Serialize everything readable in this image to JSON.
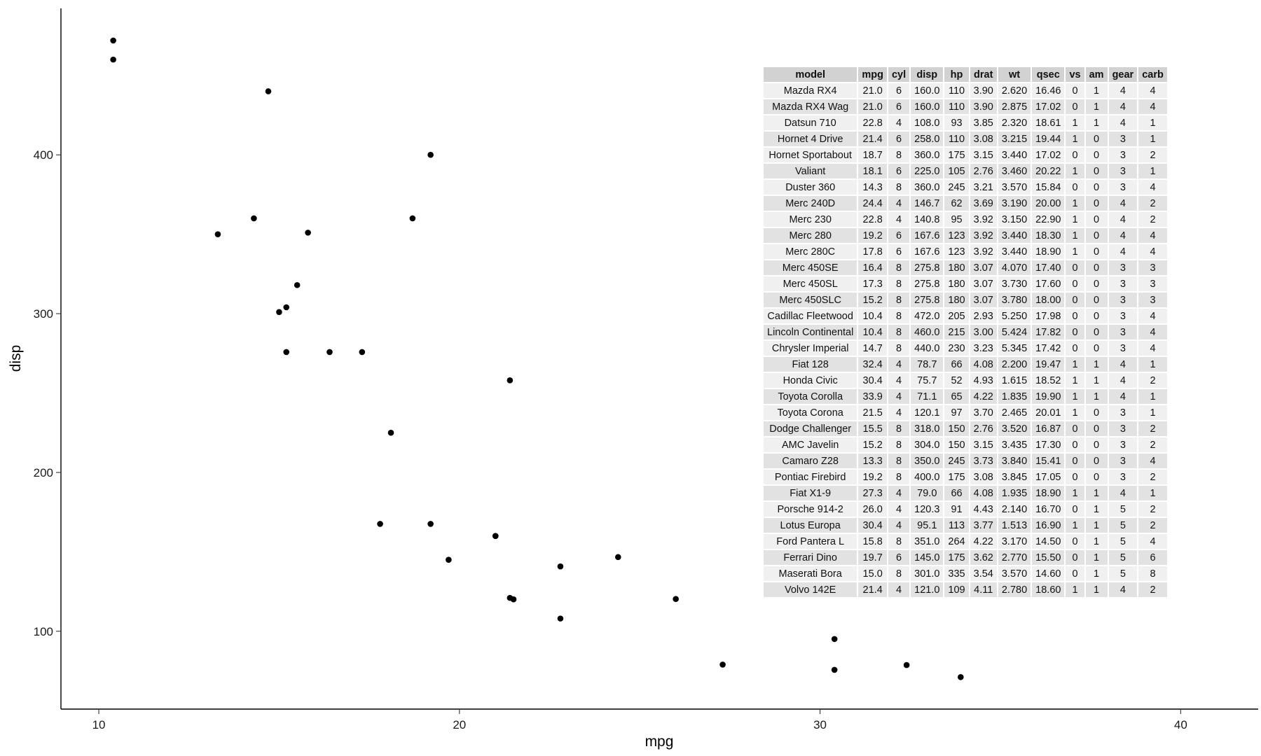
{
  "chart_data": {
    "type": "scatter",
    "title": "",
    "xlabel": "mpg",
    "ylabel": "disp",
    "xlim": [
      8.95,
      42.15
    ],
    "ylim": [
      50.97,
      492.23
    ],
    "xticks": [
      10,
      20,
      30,
      40
    ],
    "yticks": [
      100,
      200,
      300,
      400
    ],
    "grid": false,
    "points": [
      {
        "x": 21.0,
        "y": 160.0
      },
      {
        "x": 21.0,
        "y": 160.0
      },
      {
        "x": 22.8,
        "y": 108.0
      },
      {
        "x": 21.4,
        "y": 258.0
      },
      {
        "x": 18.7,
        "y": 360.0
      },
      {
        "x": 18.1,
        "y": 225.0
      },
      {
        "x": 14.3,
        "y": 360.0
      },
      {
        "x": 24.4,
        "y": 146.7
      },
      {
        "x": 22.8,
        "y": 140.8
      },
      {
        "x": 19.2,
        "y": 167.6
      },
      {
        "x": 17.8,
        "y": 167.6
      },
      {
        "x": 16.4,
        "y": 275.8
      },
      {
        "x": 17.3,
        "y": 275.8
      },
      {
        "x": 15.2,
        "y": 275.8
      },
      {
        "x": 10.4,
        "y": 472.0
      },
      {
        "x": 10.4,
        "y": 460.0
      },
      {
        "x": 14.7,
        "y": 440.0
      },
      {
        "x": 32.4,
        "y": 78.7
      },
      {
        "x": 30.4,
        "y": 75.7
      },
      {
        "x": 33.9,
        "y": 71.1
      },
      {
        "x": 21.5,
        "y": 120.1
      },
      {
        "x": 15.5,
        "y": 318.0
      },
      {
        "x": 15.2,
        "y": 304.0
      },
      {
        "x": 13.3,
        "y": 350.0
      },
      {
        "x": 19.2,
        "y": 400.0
      },
      {
        "x": 27.3,
        "y": 79.0
      },
      {
        "x": 26.0,
        "y": 120.3
      },
      {
        "x": 30.4,
        "y": 95.1
      },
      {
        "x": 15.8,
        "y": 351.0
      },
      {
        "x": 19.7,
        "y": 145.0
      },
      {
        "x": 15.0,
        "y": 301.0
      },
      {
        "x": 21.4,
        "y": 121.0
      }
    ]
  },
  "table": {
    "columns": [
      "model",
      "mpg",
      "cyl",
      "disp",
      "hp",
      "drat",
      "wt",
      "qsec",
      "vs",
      "am",
      "gear",
      "carb"
    ],
    "rows": [
      [
        "Mazda RX4",
        "21.0",
        "6",
        "160.0",
        "110",
        "3.90",
        "2.620",
        "16.46",
        "0",
        "1",
        "4",
        "4"
      ],
      [
        "Mazda RX4 Wag",
        "21.0",
        "6",
        "160.0",
        "110",
        "3.90",
        "2.875",
        "17.02",
        "0",
        "1",
        "4",
        "4"
      ],
      [
        "Datsun 710",
        "22.8",
        "4",
        "108.0",
        "93",
        "3.85",
        "2.320",
        "18.61",
        "1",
        "1",
        "4",
        "1"
      ],
      [
        "Hornet 4 Drive",
        "21.4",
        "6",
        "258.0",
        "110",
        "3.08",
        "3.215",
        "19.44",
        "1",
        "0",
        "3",
        "1"
      ],
      [
        "Hornet Sportabout",
        "18.7",
        "8",
        "360.0",
        "175",
        "3.15",
        "3.440",
        "17.02",
        "0",
        "0",
        "3",
        "2"
      ],
      [
        "Valiant",
        "18.1",
        "6",
        "225.0",
        "105",
        "2.76",
        "3.460",
        "20.22",
        "1",
        "0",
        "3",
        "1"
      ],
      [
        "Duster 360",
        "14.3",
        "8",
        "360.0",
        "245",
        "3.21",
        "3.570",
        "15.84",
        "0",
        "0",
        "3",
        "4"
      ],
      [
        "Merc 240D",
        "24.4",
        "4",
        "146.7",
        "62",
        "3.69",
        "3.190",
        "20.00",
        "1",
        "0",
        "4",
        "2"
      ],
      [
        "Merc 230",
        "22.8",
        "4",
        "140.8",
        "95",
        "3.92",
        "3.150",
        "22.90",
        "1",
        "0",
        "4",
        "2"
      ],
      [
        "Merc 280",
        "19.2",
        "6",
        "167.6",
        "123",
        "3.92",
        "3.440",
        "18.30",
        "1",
        "0",
        "4",
        "4"
      ],
      [
        "Merc 280C",
        "17.8",
        "6",
        "167.6",
        "123",
        "3.92",
        "3.440",
        "18.90",
        "1",
        "0",
        "4",
        "4"
      ],
      [
        "Merc 450SE",
        "16.4",
        "8",
        "275.8",
        "180",
        "3.07",
        "4.070",
        "17.40",
        "0",
        "0",
        "3",
        "3"
      ],
      [
        "Merc 450SL",
        "17.3",
        "8",
        "275.8",
        "180",
        "3.07",
        "3.730",
        "17.60",
        "0",
        "0",
        "3",
        "3"
      ],
      [
        "Merc 450SLC",
        "15.2",
        "8",
        "275.8",
        "180",
        "3.07",
        "3.780",
        "18.00",
        "0",
        "0",
        "3",
        "3"
      ],
      [
        "Cadillac Fleetwood",
        "10.4",
        "8",
        "472.0",
        "205",
        "2.93",
        "5.250",
        "17.98",
        "0",
        "0",
        "3",
        "4"
      ],
      [
        "Lincoln Continental",
        "10.4",
        "8",
        "460.0",
        "215",
        "3.00",
        "5.424",
        "17.82",
        "0",
        "0",
        "3",
        "4"
      ],
      [
        "Chrysler Imperial",
        "14.7",
        "8",
        "440.0",
        "230",
        "3.23",
        "5.345",
        "17.42",
        "0",
        "0",
        "3",
        "4"
      ],
      [
        "Fiat 128",
        "32.4",
        "4",
        "78.7",
        "66",
        "4.08",
        "2.200",
        "19.47",
        "1",
        "1",
        "4",
        "1"
      ],
      [
        "Honda Civic",
        "30.4",
        "4",
        "75.7",
        "52",
        "4.93",
        "1.615",
        "18.52",
        "1",
        "1",
        "4",
        "2"
      ],
      [
        "Toyota Corolla",
        "33.9",
        "4",
        "71.1",
        "65",
        "4.22",
        "1.835",
        "19.90",
        "1",
        "1",
        "4",
        "1"
      ],
      [
        "Toyota Corona",
        "21.5",
        "4",
        "120.1",
        "97",
        "3.70",
        "2.465",
        "20.01",
        "1",
        "0",
        "3",
        "1"
      ],
      [
        "Dodge Challenger",
        "15.5",
        "8",
        "318.0",
        "150",
        "2.76",
        "3.520",
        "16.87",
        "0",
        "0",
        "3",
        "2"
      ],
      [
        "AMC Javelin",
        "15.2",
        "8",
        "304.0",
        "150",
        "3.15",
        "3.435",
        "17.30",
        "0",
        "0",
        "3",
        "2"
      ],
      [
        "Camaro Z28",
        "13.3",
        "8",
        "350.0",
        "245",
        "3.73",
        "3.840",
        "15.41",
        "0",
        "0",
        "3",
        "4"
      ],
      [
        "Pontiac Firebird",
        "19.2",
        "8",
        "400.0",
        "175",
        "3.08",
        "3.845",
        "17.05",
        "0",
        "0",
        "3",
        "2"
      ],
      [
        "Fiat X1-9",
        "27.3",
        "4",
        "79.0",
        "66",
        "4.08",
        "1.935",
        "18.90",
        "1",
        "1",
        "4",
        "1"
      ],
      [
        "Porsche 914-2",
        "26.0",
        "4",
        "120.3",
        "91",
        "4.43",
        "2.140",
        "16.70",
        "0",
        "1",
        "5",
        "2"
      ],
      [
        "Lotus Europa",
        "30.4",
        "4",
        "95.1",
        "113",
        "3.77",
        "1.513",
        "16.90",
        "1",
        "1",
        "5",
        "2"
      ],
      [
        "Ford Pantera L",
        "15.8",
        "8",
        "351.0",
        "264",
        "4.22",
        "3.170",
        "14.50",
        "0",
        "1",
        "5",
        "4"
      ],
      [
        "Ferrari Dino",
        "19.7",
        "6",
        "145.0",
        "175",
        "3.62",
        "2.770",
        "15.50",
        "0",
        "1",
        "5",
        "6"
      ],
      [
        "Maserati Bora",
        "15.0",
        "8",
        "301.0",
        "335",
        "3.54",
        "3.570",
        "14.60",
        "0",
        "1",
        "5",
        "8"
      ],
      [
        "Volvo 142E",
        "21.4",
        "4",
        "121.0",
        "109",
        "4.11",
        "2.780",
        "18.60",
        "1",
        "1",
        "4",
        "2"
      ]
    ]
  }
}
